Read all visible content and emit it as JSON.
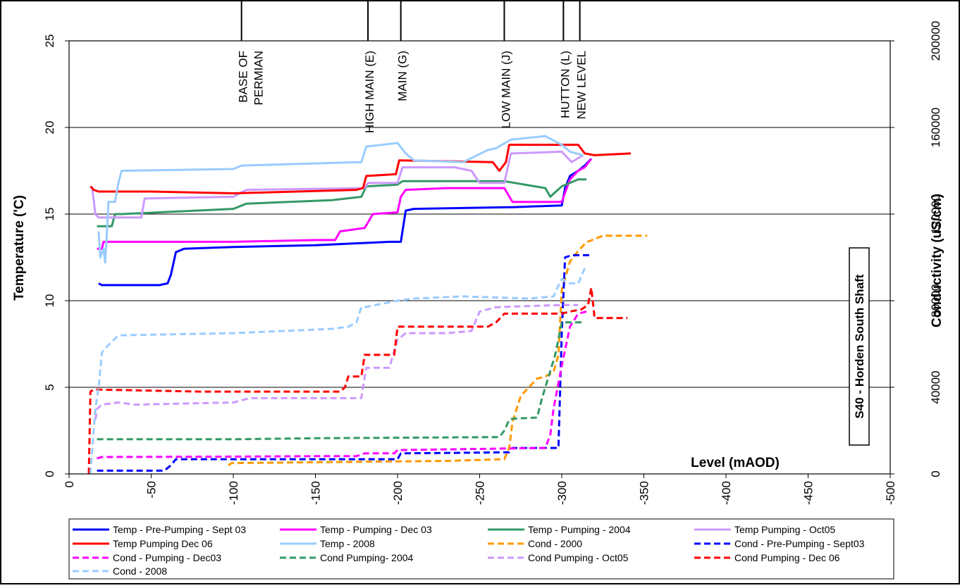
{
  "chart_data": {
    "type": "line",
    "title_box": "S40 - Horden South Shaft",
    "xlabel": "Level (mAOD)",
    "ylabel_left": "Temperature ('C)",
    "ylabel_right": "Conductivity (uS/cm)",
    "xlim": [
      0,
      -500
    ],
    "ylim_left": [
      0,
      25
    ],
    "ylim_right": [
      0,
      200000
    ],
    "xticks": [
      "0",
      "-50",
      "-100",
      "-150",
      "-200",
      "-250",
      "-300",
      "-350",
      "-400",
      "-450",
      "-500"
    ],
    "yticks_left": [
      "0",
      "5",
      "10",
      "15",
      "20",
      "25"
    ],
    "yticks_right": [
      "0",
      "40000",
      "80000",
      "120000",
      "160000",
      "200000"
    ],
    "grid": "horizontal",
    "legend_position": "bottom",
    "horizons": [
      {
        "label": "BASE OF PERMIAN",
        "lines": [
          "BASE OF",
          "PERMIAN"
        ],
        "x": -105
      },
      {
        "label": "HIGH MAIN (E)",
        "lines": [
          "HIGH MAIN (E)"
        ],
        "x": -182
      },
      {
        "label": "MAIN (G)",
        "lines": [
          "MAIN (G)"
        ],
        "x": -202
      },
      {
        "label": "LOW MAIN (J)",
        "lines": [
          "LOW MAIN (J)"
        ],
        "x": -265
      },
      {
        "label": "HUTTON (L)",
        "lines": [
          "HUTTON (L)"
        ],
        "x": -301
      },
      {
        "label": "NEW LEVEL",
        "lines": [
          "NEW LEVEL"
        ],
        "x": -311
      }
    ],
    "series": [
      {
        "name": "Temp - Pre-Pumping - Sept 03",
        "axis": "left",
        "color": "#0000ff",
        "dash": false,
        "x": [
          -18,
          -20,
          -30,
          -40,
          -55,
          -60,
          -62,
          -65,
          -70,
          -100,
          -150,
          -195,
          -202,
          -205,
          -210,
          -268,
          -270,
          -300,
          -302,
          -305,
          -310,
          -314,
          -318
        ],
        "y": [
          11.0,
          10.9,
          10.9,
          10.9,
          10.9,
          11.0,
          11.5,
          12.8,
          13.0,
          13.1,
          13.2,
          13.4,
          13.4,
          15.2,
          15.3,
          15.4,
          15.4,
          15.5,
          16.5,
          17.2,
          17.5,
          17.8,
          18.2
        ]
      },
      {
        "name": "Temp - Pumping - Dec 03",
        "axis": "left",
        "color": "#ff00ff",
        "dash": false,
        "x": [
          -17,
          -20,
          -21,
          -60,
          -100,
          -150,
          -162,
          -165,
          -180,
          -185,
          -200,
          -202,
          -205,
          -230,
          -265,
          -270,
          -300,
          -305,
          -310,
          -314,
          -318
        ],
        "y": [
          13.0,
          13.0,
          13.4,
          13.4,
          13.4,
          13.5,
          13.5,
          14.0,
          14.2,
          15.0,
          15.1,
          16.0,
          16.4,
          16.5,
          16.5,
          15.7,
          15.7,
          17.0,
          17.5,
          17.7,
          18.2
        ]
      },
      {
        "name": "Temp - Pumping - 2004",
        "axis": "left",
        "color": "#339966",
        "dash": false,
        "x": [
          -17,
          -20,
          -26,
          -28,
          -32,
          -100,
          -108,
          -160,
          -178,
          -181,
          -200,
          -203,
          -265,
          -290,
          -293,
          -300,
          -310,
          -314,
          -315
        ],
        "y": [
          14.3,
          14.3,
          14.3,
          15.0,
          15.0,
          15.3,
          15.6,
          15.8,
          16.0,
          16.6,
          16.7,
          16.9,
          16.9,
          16.5,
          16.0,
          16.6,
          17.0,
          17.0,
          17.0
        ]
      },
      {
        "name": "Temp Pumping - Oct05",
        "axis": "left",
        "color": "#cc99ff",
        "dash": false,
        "x": [
          -14,
          -16,
          -18,
          -30,
          -44,
          -46,
          -100,
          -108,
          -180,
          -182,
          -200,
          -203,
          -235,
          -245,
          -250,
          -265,
          -269,
          -300,
          -306,
          -313
        ],
        "y": [
          16.6,
          15.0,
          14.8,
          14.8,
          14.8,
          15.9,
          16.0,
          16.4,
          16.5,
          16.8,
          16.8,
          17.7,
          17.7,
          17.5,
          16.8,
          16.8,
          18.5,
          18.6,
          18.0,
          18.4
        ]
      },
      {
        "name": "Temp Pumping Dec 06",
        "axis": "left",
        "color": "#ff0000",
        "dash": false,
        "x": [
          -13,
          -15,
          -18,
          -50,
          -100,
          -175,
          -179,
          -181,
          -199,
          -201,
          -258,
          -262,
          -266,
          -268,
          -280,
          -310,
          -314,
          -320,
          -342
        ],
        "y": [
          16.6,
          16.4,
          16.3,
          16.3,
          16.2,
          16.4,
          16.5,
          17.2,
          17.3,
          18.1,
          18.0,
          17.5,
          18.0,
          19.0,
          19.0,
          19.0,
          18.5,
          18.4,
          18.5
        ]
      },
      {
        "name": "Temp - 2008",
        "axis": "left",
        "color": "#99ccff",
        "dash": false,
        "x": [
          -18,
          -19,
          -21,
          -22,
          -24,
          -26,
          -28,
          -30,
          -32,
          -100,
          -105,
          -178,
          -181,
          -200,
          -205,
          -210,
          -240,
          -255,
          -260,
          -269,
          -290,
          -300,
          -305,
          -313
        ],
        "y": [
          14.0,
          12.5,
          13.0,
          12.2,
          15.7,
          15.7,
          15.7,
          16.8,
          17.5,
          17.6,
          17.8,
          18.0,
          18.9,
          19.1,
          18.5,
          18.1,
          18.0,
          18.7,
          18.8,
          19.3,
          19.5,
          19.0,
          18.6,
          18.4
        ]
      },
      {
        "name": "Cond - 2000",
        "axis": "right",
        "color": "#ff9900",
        "dash": true,
        "x": [
          -97,
          -99,
          -230,
          -265,
          -268,
          -270,
          -275,
          -285,
          -290,
          -295,
          -298,
          -300,
          -305,
          -310,
          -315,
          -325,
          -352
        ],
        "y": [
          4000,
          5000,
          6000,
          6800,
          12000,
          24000,
          36000,
          44000,
          45000,
          47000,
          55000,
          85000,
          98000,
          103000,
          107000,
          110000,
          110000
        ]
      },
      {
        "name": "Cond - Pre-Pumping - Sept03",
        "axis": "right",
        "color": "#0000ff",
        "dash": true,
        "x": [
          -17,
          -58,
          -62,
          -65,
          -200,
          -202,
          -268,
          -270,
          -298,
          -300,
          -302,
          -306,
          -317
        ],
        "y": [
          1500,
          1500,
          4000,
          6800,
          6800,
          9500,
          10000,
          12000,
          12000,
          65000,
          100000,
          101000,
          101000
        ]
      },
      {
        "name": "Cond - Pumping - Dec03",
        "axis": "right",
        "color": "#ff00ff",
        "dash": true,
        "x": [
          -17,
          -20,
          -100,
          -150,
          -175,
          -180,
          -198,
          -200,
          -290,
          -293,
          -295,
          -300,
          -305,
          -310,
          -315
        ],
        "y": [
          7200,
          7800,
          8000,
          8200,
          8200,
          9500,
          9500,
          11000,
          12000,
          18000,
          30000,
          50000,
          68000,
          74000,
          75000
        ]
      },
      {
        "name": "Cond Pumping- 2004",
        "axis": "right",
        "color": "#339966",
        "dash": true,
        "x": [
          -17,
          -20,
          -100,
          -150,
          -262,
          -265,
          -268,
          -270,
          -285,
          -288,
          -292,
          -296,
          -300,
          -305,
          -312
        ],
        "y": [
          16000,
          16000,
          16000,
          16500,
          17000,
          20000,
          25000,
          25500,
          26000,
          35000,
          45000,
          55000,
          70000,
          70000,
          70000
        ]
      },
      {
        "name": "Cond Pumping - Oct05",
        "axis": "right",
        "color": "#cc99ff",
        "dash": true,
        "x": [
          -16,
          -17,
          -20,
          -30,
          -40,
          -100,
          -110,
          -178,
          -180,
          -181,
          -195,
          -200,
          -205,
          -230,
          -245,
          -250,
          -260,
          -300,
          -310
        ],
        "y": [
          25000,
          30000,
          32000,
          33000,
          32000,
          33000,
          35000,
          35000,
          45000,
          49000,
          49000,
          62000,
          65000,
          65000,
          66000,
          75000,
          77000,
          78000,
          78000
        ]
      },
      {
        "name": "Cond Pumping - Dec 06",
        "axis": "right",
        "color": "#ff0000",
        "dash": true,
        "x": [
          -12,
          -13,
          -15,
          -80,
          -165,
          -168,
          -170,
          -178,
          -180,
          -198,
          -200,
          -255,
          -260,
          -265,
          -300,
          -305,
          -312,
          -316,
          -318,
          -320,
          -340
        ],
        "y": [
          0,
          38000,
          39000,
          38000,
          38000,
          40000,
          45000,
          45000,
          55000,
          55000,
          68000,
          68000,
          70000,
          74000,
          74000,
          75000,
          76000,
          78000,
          86000,
          72000,
          72000
        ]
      },
      {
        "name": "Cond - 2008",
        "axis": "right",
        "color": "#99ccff",
        "dash": true,
        "x": [
          -13,
          -16,
          -18,
          -20,
          -22,
          -30,
          -100,
          -160,
          -170,
          -175,
          -178,
          -180,
          -200,
          -210,
          -240,
          -280,
          -295,
          -298,
          -300,
          -305,
          -310,
          -314
        ],
        "y": [
          0,
          30000,
          40000,
          56000,
          58000,
          64000,
          65000,
          67000,
          68000,
          70000,
          77000,
          77000,
          80000,
          81000,
          82000,
          81000,
          82000,
          87000,
          90000,
          88000,
          88000,
          95000
        ]
      }
    ]
  }
}
